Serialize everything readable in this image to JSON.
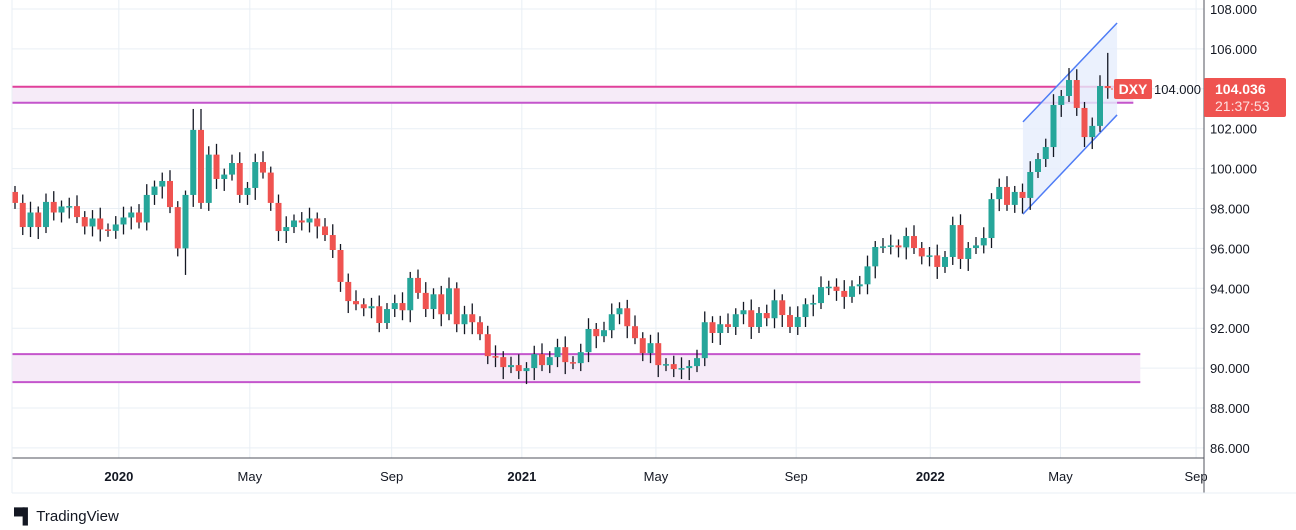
{
  "chart_data": {
    "type": "candlestick",
    "symbol": "DXY",
    "interval": "weekly",
    "last_price": "104.036",
    "countdown": "21:37:53",
    "first_open": 98.83,
    "closes": [
      98.28,
      97.07,
      97.8,
      97.07,
      98.33,
      97.8,
      98.1,
      98.12,
      97.57,
      97.1,
      97.5,
      96.95,
      96.88,
      97.2,
      97.55,
      97.8,
      97.3,
      98.68,
      99.1,
      99.38,
      98.07,
      96.0,
      98.68,
      101.94,
      98.28,
      100.7,
      99.48,
      99.7,
      100.28,
      98.68,
      99.03,
      100.33,
      99.8,
      98.28,
      96.87,
      97.07,
      97.4,
      97.3,
      97.5,
      97.1,
      96.67,
      95.92,
      94.32,
      93.36,
      93.2,
      93.0,
      93.1,
      92.26,
      92.96,
      93.26,
      92.9,
      94.52,
      93.77,
      92.96,
      93.7,
      92.7,
      94.0,
      92.2,
      92.7,
      92.3,
      91.7,
      90.6,
      90.55,
      90.05,
      90.15,
      89.85,
      90.0,
      90.7,
      90.15,
      90.55,
      91.05,
      90.3,
      90.25,
      90.8,
      91.96,
      91.6,
      91.9,
      92.7,
      93.0,
      92.1,
      91.5,
      90.75,
      91.25,
      90.15,
      90.2,
      89.95,
      90.0,
      90.1,
      90.5,
      92.3,
      91.76,
      92.2,
      92.06,
      92.7,
      92.9,
      92.06,
      92.76,
      92.5,
      93.4,
      92.66,
      92.06,
      92.56,
      93.2,
      93.26,
      94.06,
      94.08,
      93.87,
      93.57,
      94.1,
      94.2,
      95.1,
      96.07,
      96.1,
      96.15,
      96.05,
      96.62,
      96.02,
      95.6,
      95.65,
      95.07,
      95.57,
      97.17,
      95.47,
      96.02,
      96.15,
      96.52,
      98.47,
      99.08,
      98.18,
      98.83,
      98.53,
      99.83,
      100.48,
      101.08,
      103.19,
      103.64,
      104.44,
      103.04,
      101.58,
      102.14,
      104.14,
      104.036
    ],
    "high_overrides": {
      "22": 98.9,
      "23": 102.99,
      "24": 102.99,
      "136": 105.04,
      "141": 105.8
    },
    "low_overrides": {
      "22": 94.67,
      "66": 89.2,
      "47": 91.8,
      "130": 97.75,
      "141": 103.5
    },
    "ylim": [
      86,
      108.4
    ],
    "y_ticks": [
      "86.000",
      "88.000",
      "90.000",
      "92.000",
      "94.000",
      "96.000",
      "98.000",
      "100.000",
      "102.000",
      "104.000",
      "106.000",
      "108.000"
    ],
    "x_ticks": [
      {
        "label": "2020",
        "index": 13.4,
        "year": true
      },
      {
        "label": "May",
        "index": 30.3,
        "year": false
      },
      {
        "label": "Sep",
        "index": 48.6,
        "year": false
      },
      {
        "label": "2021",
        "index": 65.4,
        "year": true
      },
      {
        "label": "May",
        "index": 82.7,
        "year": false
      },
      {
        "label": "Sep",
        "index": 100.8,
        "year": false
      },
      {
        "label": "2022",
        "index": 118.1,
        "year": true
      },
      {
        "label": "May",
        "index": 134.9,
        "year": false
      },
      {
        "label": "Sep",
        "index": 152.4,
        "year": false
      }
    ],
    "zones": [
      {
        "name": "resistance-zone",
        "low": 103.3,
        "high": 104.1,
        "end_index": 144.3
      },
      {
        "name": "support-zone",
        "low": 89.3,
        "high": 90.7,
        "end_index": 145.2
      }
    ],
    "channel": {
      "start_index": 130.06,
      "end_index": 142.2,
      "upper": [
        102.34,
        107.3
      ],
      "lower": [
        97.72,
        102.69
      ]
    },
    "colors": {
      "up": "#26a69a",
      "down": "#ef5350",
      "zone_line": "#c455cc",
      "zone_top_line": "#e0409a",
      "zone_fill": "#f6ebf8",
      "channel": "#4e7cf6",
      "channel_fill": "#e6edfd",
      "grid": "#e9eff5"
    }
  },
  "brand": {
    "name": "TradingView"
  }
}
